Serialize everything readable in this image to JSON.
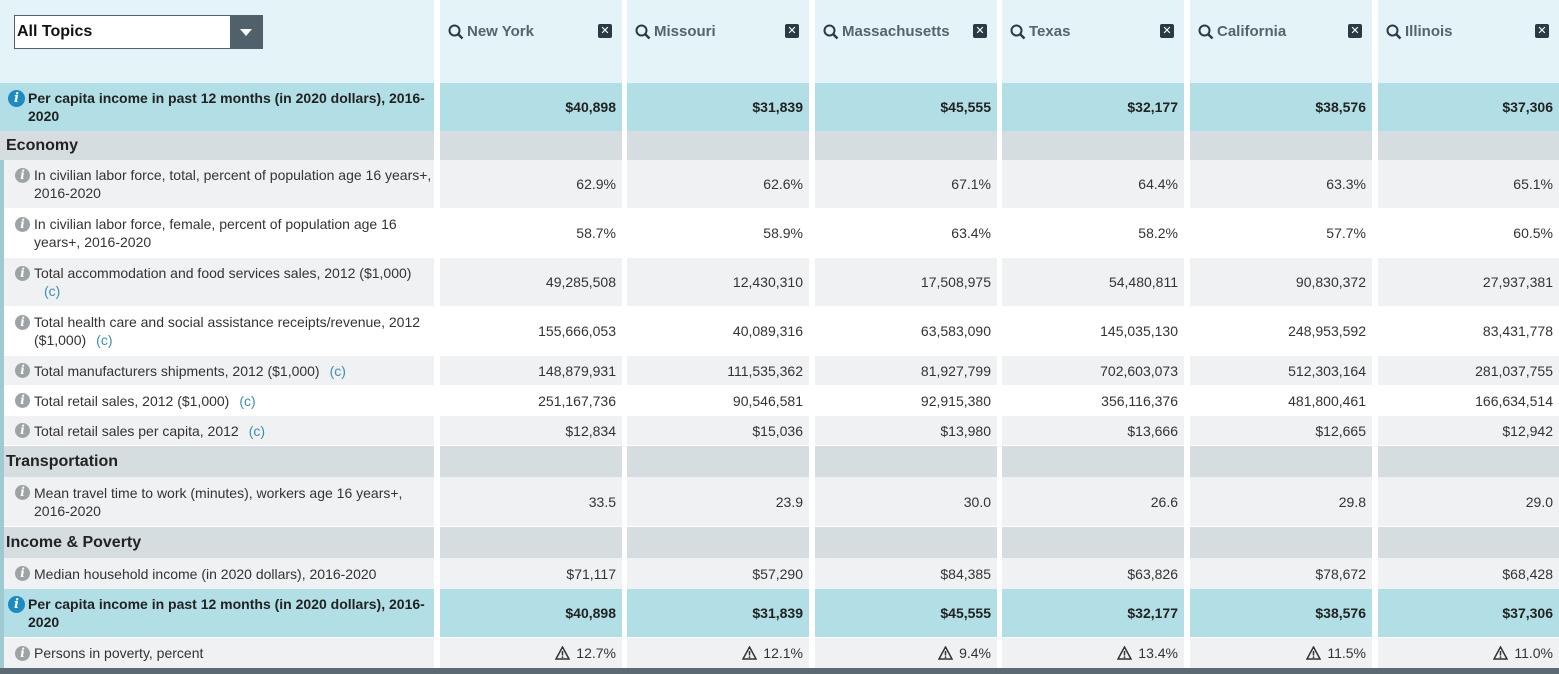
{
  "topic_select": {
    "value": "All Topics"
  },
  "states": [
    "New York",
    "Missouri",
    "Massachusetts",
    "Texas",
    "California",
    "Illinois"
  ],
  "colors": {
    "highlight": "#b2dfe5",
    "header_bg": "#e4f3f7",
    "section_bg": "#d6dde1",
    "footnote": "#3b8fb4",
    "info_highlight": "#1b8bc2"
  },
  "rows": [
    {
      "kind": "hl",
      "label": "Per capita income in past 12 months (in 2020 dollars), 2016-2020",
      "values": [
        "$40,898",
        "$31,839",
        "$45,555",
        "$32,177",
        "$38,576",
        "$37,306"
      ]
    },
    {
      "kind": "sec",
      "label": "Economy"
    },
    {
      "kind": "odd",
      "label": "In civilian labor force, total, percent of population age 16 years+, 2016-2020",
      "values": [
        "62.9%",
        "62.6%",
        "67.1%",
        "64.4%",
        "63.3%",
        "65.1%"
      ]
    },
    {
      "kind": "even",
      "label": "In civilian labor force, female, percent of population age 16 years+, 2016-2020",
      "values": [
        "58.7%",
        "58.9%",
        "63.4%",
        "58.2%",
        "57.7%",
        "60.5%"
      ]
    },
    {
      "kind": "odd",
      "label": "Total accommodation and food services sales, 2012 ($1,000)",
      "footnote": "(c)",
      "values": [
        "49,285,508",
        "12,430,310",
        "17,508,975",
        "54,480,811",
        "90,830,372",
        "27,937,381"
      ]
    },
    {
      "kind": "even",
      "label": "Total health care and social assistance receipts/revenue, 2012 ($1,000)",
      "footnote": "(c)",
      "values": [
        "155,666,053",
        "40,089,316",
        "63,583,090",
        "145,035,130",
        "248,953,592",
        "83,431,778"
      ]
    },
    {
      "kind": "odd",
      "label": "Total manufacturers shipments, 2012 ($1,000)",
      "footnote": "(c)",
      "values": [
        "148,879,931",
        "111,535,362",
        "81,927,799",
        "702,603,073",
        "512,303,164",
        "281,037,755"
      ]
    },
    {
      "kind": "even",
      "label": "Total retail sales, 2012 ($1,000)",
      "footnote": "(c)",
      "values": [
        "251,167,736",
        "90,546,581",
        "92,915,380",
        "356,116,376",
        "481,800,461",
        "166,634,514"
      ]
    },
    {
      "kind": "odd",
      "label": "Total retail sales per capita, 2012",
      "footnote": "(c)",
      "values": [
        "$12,834",
        "$15,036",
        "$13,980",
        "$13,666",
        "$12,665",
        "$12,942"
      ]
    },
    {
      "kind": "sec",
      "label": "Transportation"
    },
    {
      "kind": "odd",
      "label": "Mean travel time to work (minutes), workers age 16 years+, 2016-2020",
      "values": [
        "33.5",
        "23.9",
        "30.0",
        "26.6",
        "29.8",
        "29.0"
      ]
    },
    {
      "kind": "sec",
      "label": "Income & Poverty"
    },
    {
      "kind": "odd",
      "label": "Median household income (in 2020 dollars), 2016-2020",
      "values": [
        "$71,117",
        "$57,290",
        "$84,385",
        "$63,826",
        "$78,672",
        "$68,428"
      ]
    },
    {
      "kind": "hl",
      "label": "Per capita income in past 12 months (in 2020 dollars), 2016-2020",
      "values": [
        "$40,898",
        "$31,839",
        "$45,555",
        "$32,177",
        "$38,576",
        "$37,306"
      ]
    },
    {
      "kind": "odd",
      "label": "Persons in poverty, percent",
      "warn": true,
      "values": [
        "12.7%",
        "12.1%",
        "9.4%",
        "13.4%",
        "11.5%",
        "11.0%"
      ]
    }
  ]
}
